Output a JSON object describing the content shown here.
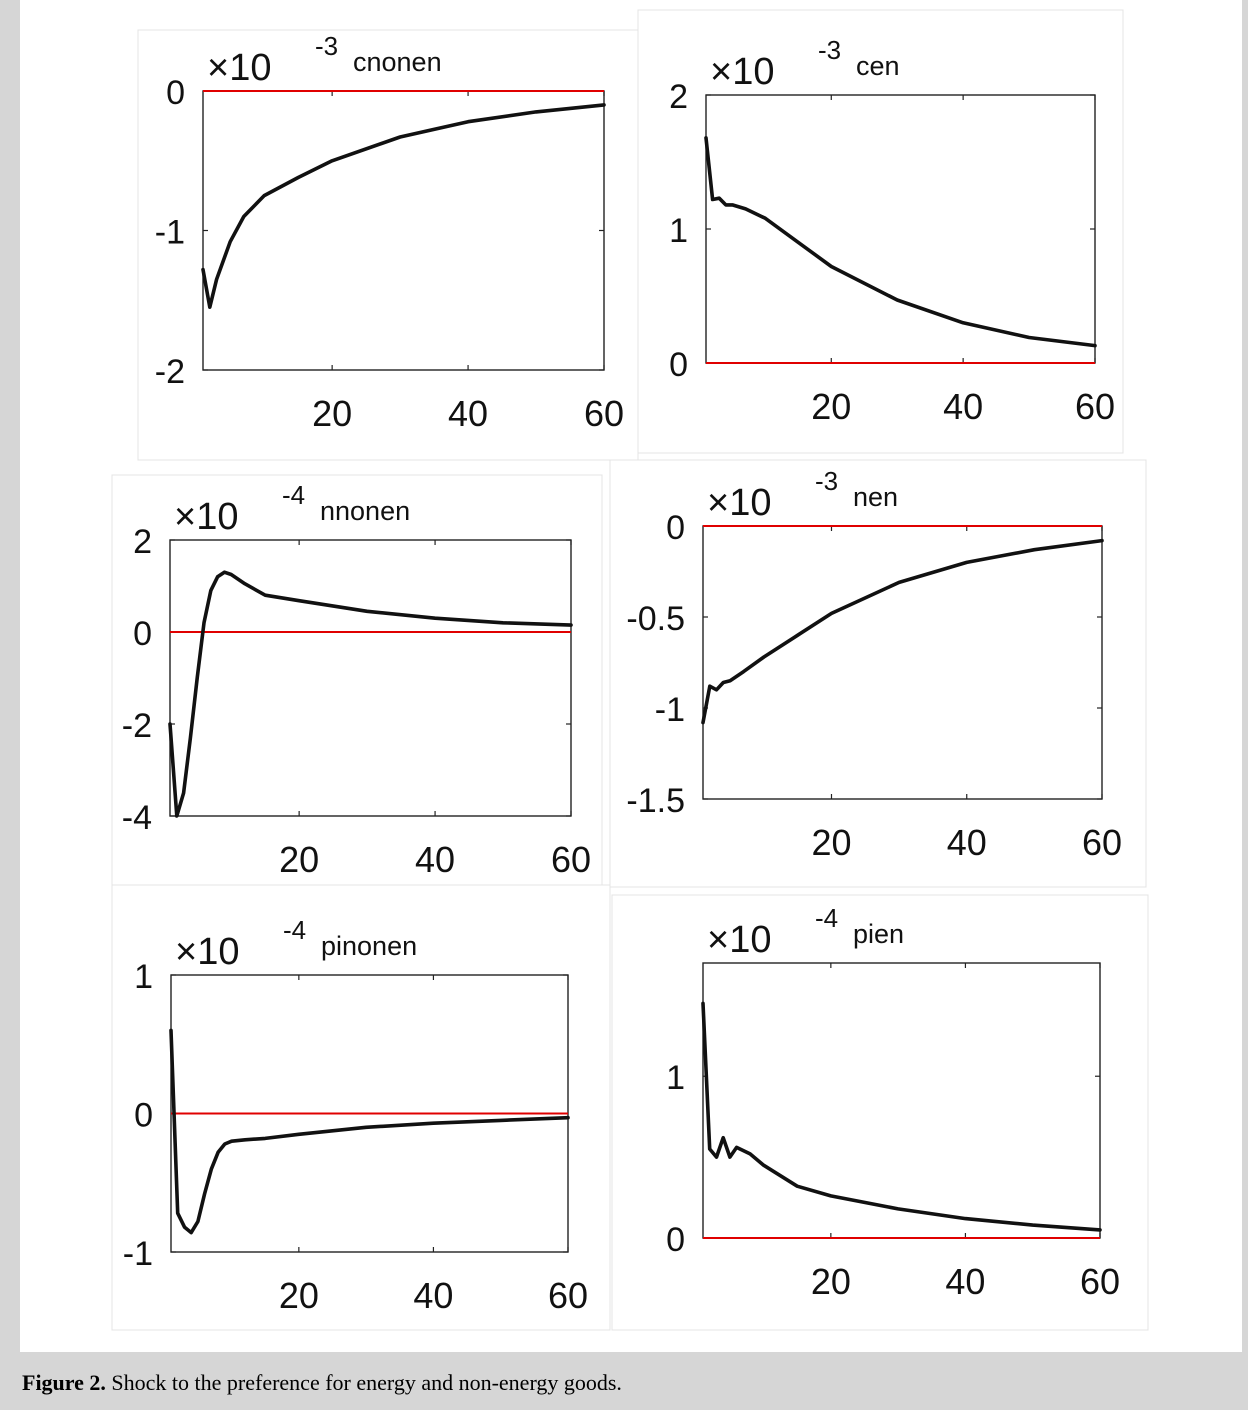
{
  "caption": {
    "label": "Figure 2.",
    "text": " Shock to the preference for energy and non-energy goods."
  },
  "colors": {
    "line": "#111111",
    "zero": "#e00000",
    "axis": "#222222",
    "text": "#111111"
  },
  "chart_data": [
    {
      "type": "line",
      "title": "cnonen",
      "multiplier": "×10",
      "exponent": "-3",
      "xlim": [
        1,
        60
      ],
      "ylim": [
        -2,
        0
      ],
      "xticks": [
        20,
        40,
        60
      ],
      "yticks": [
        -2,
        -1,
        0
      ],
      "ytick_labels": [
        "-2",
        "-1",
        "0"
      ],
      "x": [
        1,
        2,
        3,
        5,
        7,
        10,
        15,
        20,
        30,
        40,
        50,
        60
      ],
      "series": [
        {
          "values": [
            -1.28,
            -1.55,
            -1.35,
            -1.08,
            -0.9,
            -0.75,
            -0.62,
            -0.5,
            -0.33,
            -0.22,
            -0.15,
            -0.1
          ]
        }
      ],
      "zero_line": 0
    },
    {
      "type": "line",
      "title": "cen",
      "multiplier": "×10",
      "exponent": "-3",
      "xlim": [
        1,
        60
      ],
      "ylim": [
        0,
        2
      ],
      "xticks": [
        20,
        40,
        60
      ],
      "yticks": [
        0,
        1,
        2
      ],
      "ytick_labels": [
        "0",
        "1",
        "2"
      ],
      "x": [
        1,
        2,
        3,
        4,
        5,
        7,
        10,
        15,
        20,
        30,
        40,
        50,
        60
      ],
      "series": [
        {
          "values": [
            1.68,
            1.22,
            1.23,
            1.18,
            1.18,
            1.15,
            1.08,
            0.9,
            0.72,
            0.47,
            0.3,
            0.19,
            0.13
          ]
        }
      ],
      "zero_line": 0
    },
    {
      "type": "line",
      "title": "nnonen",
      "multiplier": "×10",
      "exponent": "-4",
      "xlim": [
        1,
        60
      ],
      "ylim": [
        -4,
        2
      ],
      "xticks": [
        20,
        40,
        60
      ],
      "yticks": [
        -4,
        -2,
        0,
        2
      ],
      "ytick_labels": [
        "-4",
        "-2",
        "0",
        "2"
      ],
      "x": [
        1,
        2,
        3,
        4,
        5,
        6,
        7,
        8,
        9,
        10,
        12,
        15,
        20,
        30,
        40,
        50,
        60
      ],
      "series": [
        {
          "values": [
            -2.0,
            -4.0,
            -3.5,
            -2.3,
            -1.0,
            0.2,
            0.9,
            1.2,
            1.3,
            1.25,
            1.05,
            0.8,
            0.68,
            0.45,
            0.3,
            0.2,
            0.15
          ]
        }
      ],
      "zero_line": 0
    },
    {
      "type": "line",
      "title": "nen",
      "multiplier": "×10",
      "exponent": "-3",
      "xlim": [
        1,
        60
      ],
      "ylim": [
        -1.5,
        0
      ],
      "xticks": [
        20,
        40,
        60
      ],
      "yticks": [
        -1.5,
        -1,
        -0.5,
        0
      ],
      "ytick_labels": [
        "-1.5",
        "-1",
        "-0.5",
        "0"
      ],
      "x": [
        1,
        2,
        3,
        4,
        5,
        7,
        10,
        15,
        20,
        30,
        40,
        50,
        60
      ],
      "series": [
        {
          "values": [
            -1.08,
            -0.88,
            -0.9,
            -0.86,
            -0.85,
            -0.8,
            -0.72,
            -0.6,
            -0.48,
            -0.31,
            -0.2,
            -0.13,
            -0.08
          ]
        }
      ],
      "zero_line": 0
    },
    {
      "type": "line",
      "title": "pinonen",
      "multiplier": "×10",
      "exponent": "-4",
      "xlim": [
        1,
        60
      ],
      "ylim": [
        -1,
        1
      ],
      "xticks": [
        20,
        40,
        60
      ],
      "yticks": [
        -1,
        0,
        1
      ],
      "ytick_labels": [
        "-1",
        "0",
        "1"
      ],
      "x": [
        1,
        2,
        3,
        4,
        5,
        6,
        7,
        8,
        9,
        10,
        12,
        15,
        20,
        30,
        40,
        50,
        60
      ],
      "series": [
        {
          "values": [
            0.6,
            -0.72,
            -0.82,
            -0.86,
            -0.78,
            -0.58,
            -0.4,
            -0.28,
            -0.22,
            -0.2,
            -0.19,
            -0.18,
            -0.15,
            -0.1,
            -0.07,
            -0.05,
            -0.03
          ]
        }
      ],
      "zero_line": 0
    },
    {
      "type": "line",
      "title": "pien",
      "multiplier": "×10",
      "exponent": "-4",
      "xlim": [
        1,
        60
      ],
      "ylim": [
        0,
        1.7
      ],
      "xticks": [
        20,
        40,
        60
      ],
      "yticks": [
        0,
        1
      ],
      "ytick_labels": [
        "0",
        "1"
      ],
      "x": [
        1,
        2,
        3,
        4,
        5,
        6,
        8,
        10,
        15,
        20,
        30,
        40,
        50,
        60
      ],
      "series": [
        {
          "values": [
            1.45,
            0.55,
            0.5,
            0.62,
            0.5,
            0.56,
            0.52,
            0.45,
            0.32,
            0.26,
            0.18,
            0.12,
            0.08,
            0.05
          ]
        }
      ],
      "zero_line": 0
    }
  ]
}
